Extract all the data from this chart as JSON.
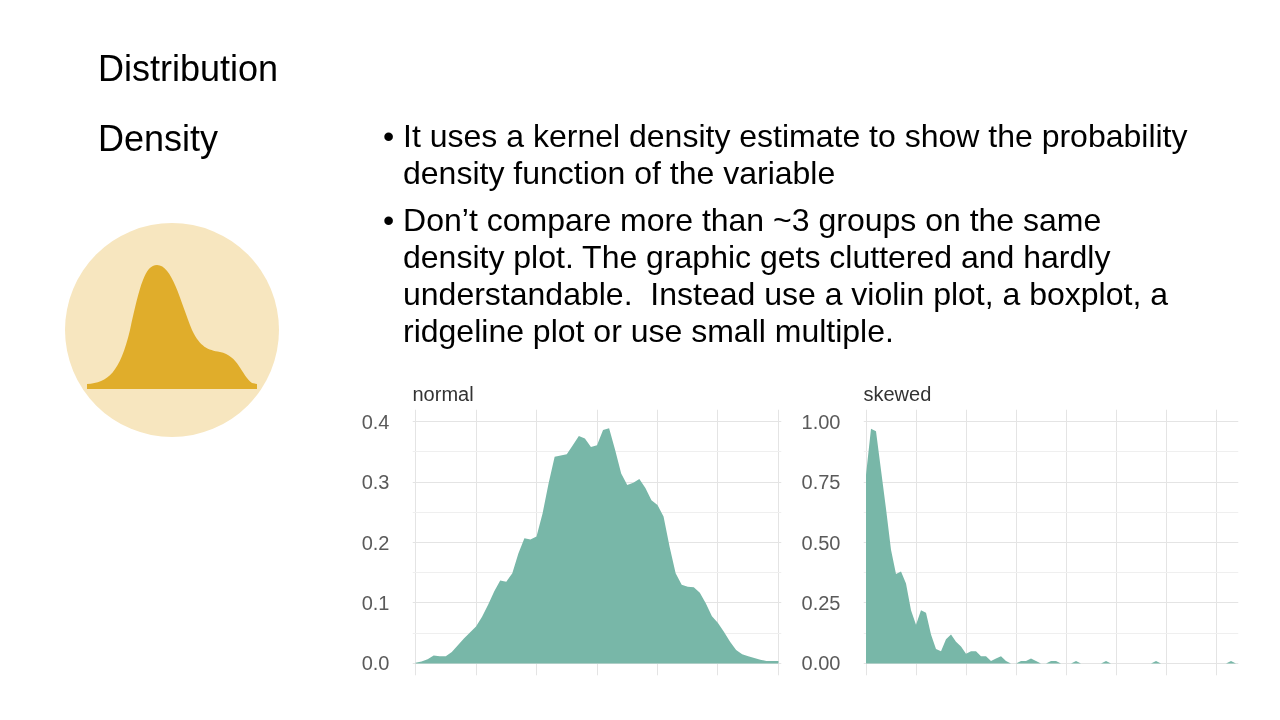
{
  "chart_data": [
    {
      "type": "other",
      "title": "Distribution",
      "subtitle": "Density",
      "annotations": [
        "• It uses a kernel density estimate to show the probability density function of the variable",
        "• Don’t compare more than ~3 groups on the same density plot. The graphic gets cluttered and hardly understandable.  Instead use a violin plot, a boxplot, a ridgeline plot or use small multiple."
      ]
    },
    {
      "type": "area",
      "title": "normal",
      "color": "#78b7a8",
      "grid": true,
      "tick_labels": "y",
      "categories": [
        null,
        null,
        null,
        null,
        null,
        null,
        null,
        null,
        null,
        null,
        null,
        null,
        null,
        null,
        null,
        null,
        null,
        null,
        null,
        null,
        null,
        null,
        null,
        null,
        null,
        null,
        null,
        null,
        null,
        null,
        null,
        null,
        null,
        null,
        null,
        null,
        null,
        null,
        null,
        null,
        null,
        null,
        null,
        null,
        null,
        null,
        null,
        null,
        null,
        null,
        null,
        null,
        null,
        null,
        null,
        null,
        null,
        null,
        null,
        null,
        null
      ],
      "values": [
        0.001,
        0.003,
        0.007,
        0.013,
        0.012,
        0.012,
        0.019,
        0.03,
        0.041,
        0.051,
        0.061,
        0.077,
        0.097,
        0.119,
        0.137,
        0.135,
        0.149,
        0.182,
        0.207,
        0.205,
        0.21,
        0.248,
        0.298,
        0.342,
        0.344,
        0.346,
        0.361,
        0.376,
        0.372,
        0.358,
        0.361,
        0.386,
        0.389,
        0.353,
        0.314,
        0.295,
        0.299,
        0.305,
        0.29,
        0.27,
        0.262,
        0.243,
        0.193,
        0.149,
        0.13,
        0.127,
        0.126,
        0.117,
        0.099,
        0.078,
        0.067,
        0.052,
        0.036,
        0.022,
        0.015,
        0.012,
        0.009,
        0.006,
        0.004,
        0.004,
        0.004
      ],
      "ylim": [
        -0.02,
        0.42
      ],
      "yticks": [
        {
          "value": 0,
          "label": "0.0"
        },
        0.1,
        0.2,
        0.3,
        0.4
      ]
    },
    {
      "type": "area",
      "title": "skewed",
      "color": "#78b7a8",
      "grid": true,
      "tick_labels": "y",
      "categories": [
        null,
        null,
        null,
        null,
        null,
        null,
        null,
        null,
        null,
        null,
        null,
        null,
        null,
        null,
        null,
        null,
        null,
        null,
        null,
        null,
        null,
        null,
        null,
        null,
        null,
        null,
        null,
        null,
        null,
        null,
        null,
        null,
        null,
        null,
        null,
        null,
        null,
        null,
        null,
        null,
        null,
        null,
        null,
        null,
        null,
        null,
        null,
        null,
        null,
        null,
        null,
        null,
        null,
        null,
        null,
        null,
        null,
        null,
        null,
        null,
        null,
        null,
        null,
        null,
        null,
        null,
        null,
        null,
        null,
        null,
        null,
        null,
        null,
        null,
        null
      ],
      "values": [
        0.78,
        0.97,
        0.96,
        0.8,
        0.64,
        0.47,
        0.37,
        0.38,
        0.33,
        0.22,
        0.16,
        0.22,
        0.21,
        0.12,
        0.06,
        0.05,
        0.1,
        0.12,
        0.09,
        0.07,
        0.04,
        0.05,
        0.05,
        0.03,
        0.03,
        0.01,
        0.02,
        0.03,
        0.01,
        0.0,
        0.0,
        0.01,
        0.01,
        0.02,
        0.01,
        0.0,
        0.0,
        0.01,
        0.01,
        0.0,
        0.0,
        0.0,
        0.01,
        0.0,
        0.0,
        0.0,
        0.0,
        0.0,
        0.01,
        0.0,
        0.0,
        0.0,
        0.0,
        0.0,
        0.0,
        0.0,
        0.0,
        0.0,
        0.01,
        0.0,
        0.0,
        0.0,
        0.0,
        0.0,
        0.0,
        0.0,
        0.0,
        0.0,
        0.0,
        0.0,
        0.0,
        0.0,
        0.0,
        0.01,
        0.0
      ],
      "ylim": [
        -0.05,
        1.05
      ],
      "yticks": [
        {
          "value": 0,
          "label": "0.00"
        },
        0.25,
        {
          "value": 0.5,
          "label": "0.50"
        },
        0.75,
        {
          "value": 1,
          "label": "1.00"
        }
      ]
    }
  ]
}
